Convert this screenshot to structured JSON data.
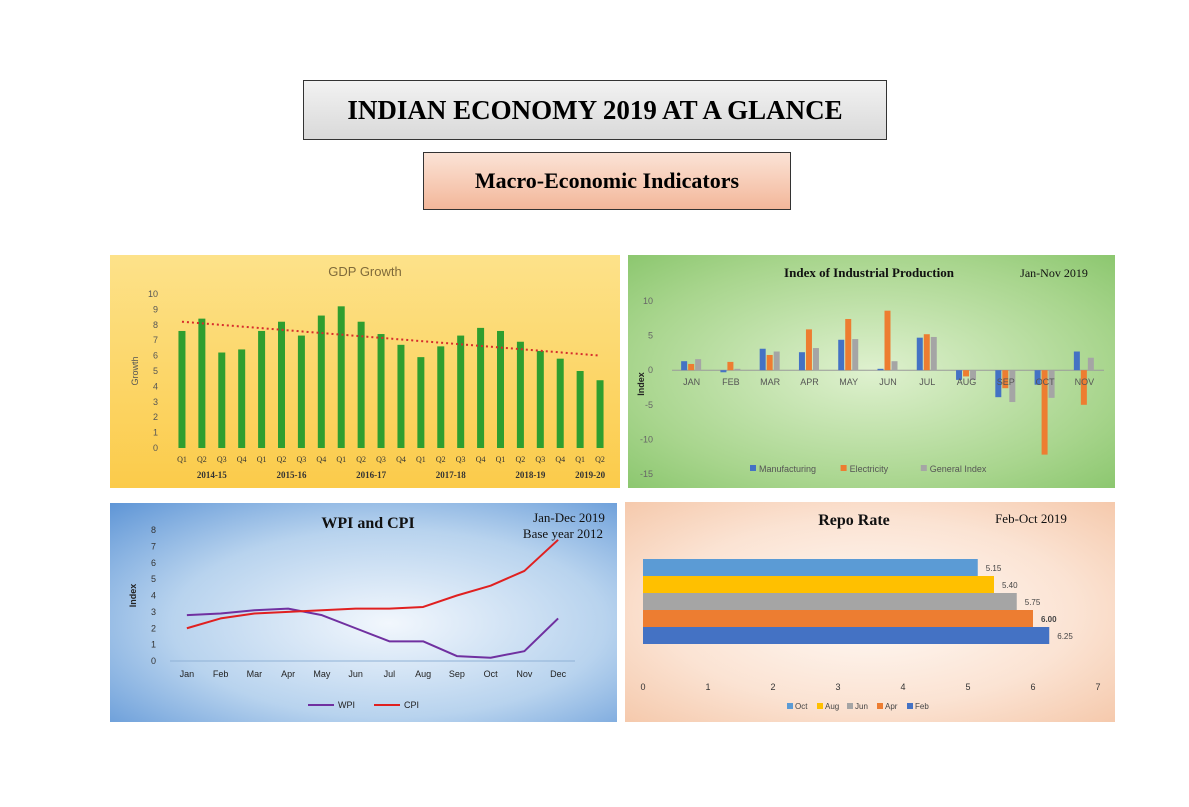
{
  "header": {
    "title": "INDIAN ECONOMY 2019 AT A GLANCE",
    "subtitle": "Macro-Economic Indicators"
  },
  "colors": {
    "gdp_bar": "#2f9e2f",
    "trend": "#d62c2c",
    "manufacturing": "#4472c4",
    "electricity": "#ed7d31",
    "general_index": "#a5a5a5",
    "wpi": "#7030a0",
    "cpi": "#e02020",
    "repo_oct": "#5b9bd5",
    "repo_aug": "#ffc000",
    "repo_jun": "#a5a5a5",
    "repo_apr": "#ed7d31",
    "repo_feb": "#4472c4"
  },
  "chart_data": [
    {
      "id": "gdp",
      "type": "bar",
      "title": "GDP Growth",
      "ylabel": "Growth",
      "ylim": [
        0,
        10
      ],
      "yticks": [
        "0",
        "1",
        "2",
        "3",
        "4",
        "5",
        "6",
        "7",
        "8",
        "9",
        "10"
      ],
      "categories": [
        "Q1",
        "Q2",
        "Q3",
        "Q4",
        "Q1",
        "Q2",
        "Q3",
        "Q4",
        "Q1",
        "Q2",
        "Q3",
        "Q4",
        "Q1",
        "Q2",
        "Q3",
        "Q4",
        "Q1",
        "Q2",
        "Q3",
        "Q4",
        "Q1",
        "Q2"
      ],
      "groups": [
        "2014-15",
        "2015-16",
        "2016-17",
        "2017-18",
        "2018-19",
        "2019-20"
      ],
      "values": [
        7.6,
        8.4,
        6.2,
        6.4,
        7.6,
        8.2,
        7.3,
        8.6,
        9.2,
        8.2,
        7.4,
        6.7,
        5.9,
        6.6,
        7.3,
        7.8,
        7.6,
        6.9,
        6.3,
        5.8,
        5.0,
        4.4
      ],
      "trendline": [
        8.2,
        6.0
      ],
      "grid": false,
      "legend": "none"
    },
    {
      "id": "iip",
      "type": "bar",
      "title": "Index of Industrial  Production",
      "annotation": "Jan-Nov 2019",
      "ylabel": "Index",
      "ylim": [
        -15,
        10
      ],
      "yticks": [
        "10",
        "5",
        "0",
        "-5",
        "-10",
        "-15"
      ],
      "categories": [
        "JAN",
        "FEB",
        "MAR",
        "APR",
        "MAY",
        "JUN",
        "JUL",
        "AUG",
        "SEP",
        "OCT",
        "NOV"
      ],
      "series": [
        {
          "name": "Manufacturing",
          "values": [
            1.3,
            -0.3,
            3.1,
            2.6,
            4.4,
            0.2,
            4.7,
            -1.4,
            -3.9,
            -2.1,
            2.7
          ]
        },
        {
          "name": "Electricity",
          "values": [
            0.9,
            1.2,
            2.2,
            5.9,
            7.4,
            8.6,
            5.2,
            -0.9,
            -2.6,
            -12.2,
            -5.0
          ]
        },
        {
          "name": "General Index",
          "values": [
            1.6,
            0.2,
            2.7,
            3.2,
            4.5,
            1.3,
            4.8,
            -1.4,
            -4.6,
            -4.0,
            1.8
          ]
        }
      ],
      "grid": false,
      "legend": "bottom"
    },
    {
      "id": "wpi_cpi",
      "type": "line",
      "title": "WPI and CPI",
      "annotation": [
        "Jan-Dec 2019",
        "Base year  2012"
      ],
      "ylabel": "Index",
      "ylim": [
        0,
        8
      ],
      "yticks": [
        "0",
        "1",
        "2",
        "3",
        "4",
        "5",
        "6",
        "7",
        "8"
      ],
      "categories": [
        "Jan",
        "Feb",
        "Mar",
        "Apr",
        "May",
        "Jun",
        "Jul",
        "Aug",
        "Sep",
        "Oct",
        "Nov",
        "Dec"
      ],
      "series": [
        {
          "name": "WPI",
          "values": [
            2.8,
            2.9,
            3.1,
            3.2,
            2.8,
            2.0,
            1.2,
            1.2,
            0.3,
            0.2,
            0.6,
            2.6
          ]
        },
        {
          "name": "CPI",
          "values": [
            2.0,
            2.6,
            2.9,
            3.0,
            3.1,
            3.2,
            3.2,
            3.3,
            4.0,
            4.6,
            5.5,
            7.4
          ]
        }
      ],
      "grid": false,
      "legend": "bottom"
    },
    {
      "id": "repo",
      "type": "bar",
      "orientation": "horizontal",
      "title": "Repo Rate",
      "annotation": "Feb-Oct 2019",
      "xlim": [
        0,
        7
      ],
      "xticks": [
        "0",
        "1",
        "2",
        "3",
        "4",
        "5",
        "6",
        "7"
      ],
      "series": [
        {
          "name": "Oct",
          "value": 5.15,
          "label": "5.15"
        },
        {
          "name": "Aug",
          "value": 5.4,
          "label": "5.40"
        },
        {
          "name": "Jun",
          "value": 5.75,
          "label": "5.75"
        },
        {
          "name": "Apr",
          "value": 6.0,
          "label": "6.00"
        },
        {
          "name": "Feb",
          "value": 6.25,
          "label": "6.25"
        }
      ],
      "grid": false,
      "legend": "bottom"
    }
  ]
}
